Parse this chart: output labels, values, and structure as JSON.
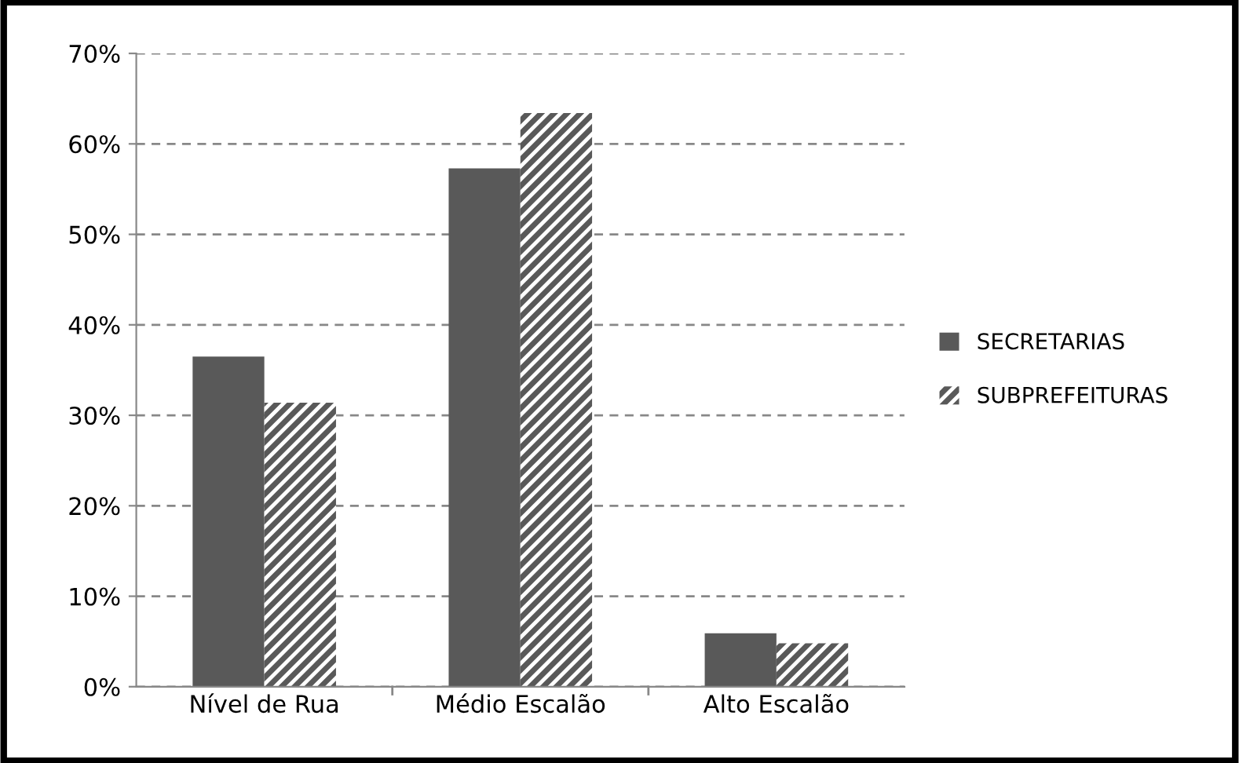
{
  "chart_data": {
    "type": "bar",
    "categories": [
      "Nível de Rua",
      "Médio Escalão",
      "Alto Escalão"
    ],
    "series": [
      {
        "name": "SECRETARIAS",
        "color": "#595959",
        "values": [
          36.5,
          57.3,
          5.9
        ]
      },
      {
        "name": "SUBPREFEITURAS",
        "color": "#595959",
        "values": [
          31.4,
          63.4,
          4.8
        ]
      }
    ],
    "ylim": [
      0,
      70
    ],
    "yticks": [
      {
        "value": 0,
        "label": "0%"
      },
      {
        "value": 10,
        "label": "10%"
      },
      {
        "value": 20,
        "label": "20%"
      },
      {
        "value": 30,
        "label": "30%"
      },
      {
        "value": 40,
        "label": "40%"
      },
      {
        "value": 50,
        "label": "50%"
      },
      {
        "value": 60,
        "label": "60%"
      },
      {
        "value": 70,
        "label": "70%"
      }
    ],
    "grid": "y",
    "legend": "right"
  }
}
